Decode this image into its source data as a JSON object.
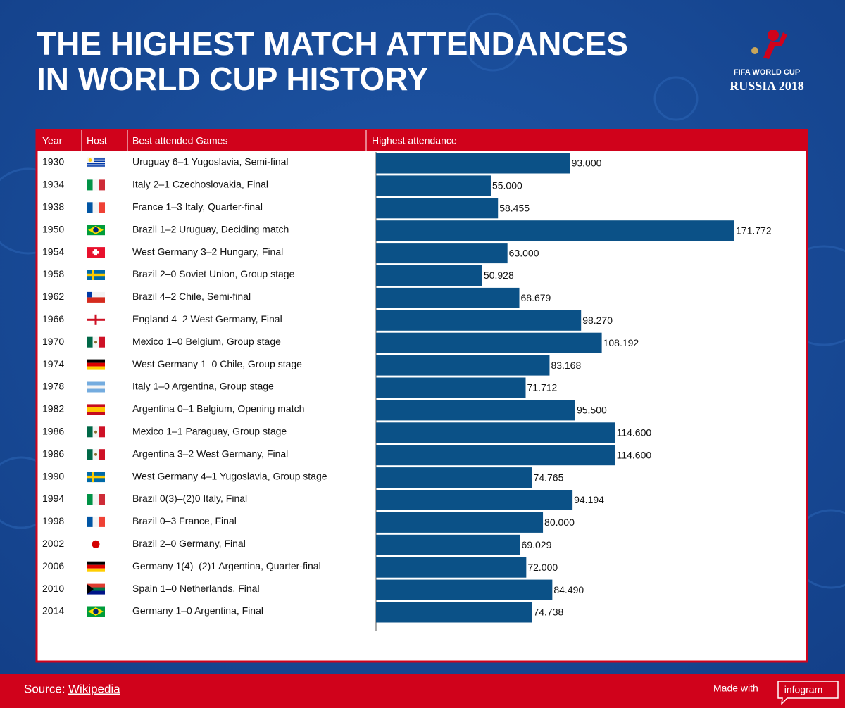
{
  "header": {
    "title_lines": [
      "THE HIGHEST MATCH ATTENDANCES",
      "IN WORLD CUP HISTORY"
    ],
    "logo": {
      "line1": "FIFA WORLD CUP",
      "line2": "RUSSIA 2018"
    }
  },
  "chart_data": {
    "type": "bar",
    "columns": [
      "Year",
      "Host",
      "Best attended Games",
      "Highest attendance"
    ],
    "years": [
      1930,
      1934,
      1938,
      1950,
      1954,
      1958,
      1962,
      1966,
      1970,
      1974,
      1978,
      1982,
      1986,
      1986,
      1990,
      1994,
      1998,
      2002,
      2006,
      2010,
      2014
    ],
    "categories": [
      "Uruguay 6–1 Yugoslavia, Semi-final",
      "Italy 2–1 Czechoslovakia, Final",
      "France 1–3 Italy, Quarter-final",
      "Brazil 1–2 Uruguay, Deciding match",
      "West Germany 3–2 Hungary, Final",
      "Brazil 2–0 Soviet Union, Group stage",
      "Brazil 4–2 Chile, Semi-final",
      "England 4–2 West Germany, Final",
      "Mexico 1–0 Belgium, Group stage",
      "West Germany 1–0 Chile, Group stage",
      "Italy 1–0 Argentina, Group stage",
      "Argentina 0–1 Belgium, Opening match",
      "Mexico 1–1 Paraguay, Group stage",
      "Argentina 3–2 West Germany, Final",
      "West Germany 4–1 Yugoslavia, Group stage",
      "Brazil 0(3)–(2)0 Italy, Final",
      "Brazil 0–3 France, Final",
      "Brazil 2–0 Germany, Final",
      "Germany 1(4)–(2)1 Argentina, Quarter-final",
      "Spain 1–0 Netherlands, Final",
      "Germany 1–0 Argentina, Final"
    ],
    "values": [
      93000,
      55000,
      58455,
      171772,
      63000,
      50928,
      68679,
      98270,
      108192,
      83168,
      71712,
      95500,
      114600,
      114600,
      74765,
      94194,
      80000,
      69029,
      72000,
      84490,
      74738
    ],
    "value_labels": [
      "93.000",
      "55.000",
      "58.455",
      "171.772",
      "63.000",
      "50.928",
      "68.679",
      "98.270",
      "108.192",
      "83.168",
      "71.712",
      "95.500",
      "114.600",
      "114.600",
      "74.765",
      "94.194",
      "80.000",
      "69.029",
      "72.000",
      "84.490",
      "74.738"
    ],
    "color": "#0b5187"
  },
  "footer": {
    "source_label": "Source:",
    "source_link": "Wikipedia",
    "made_with": "Made with",
    "brand": "infogram"
  }
}
